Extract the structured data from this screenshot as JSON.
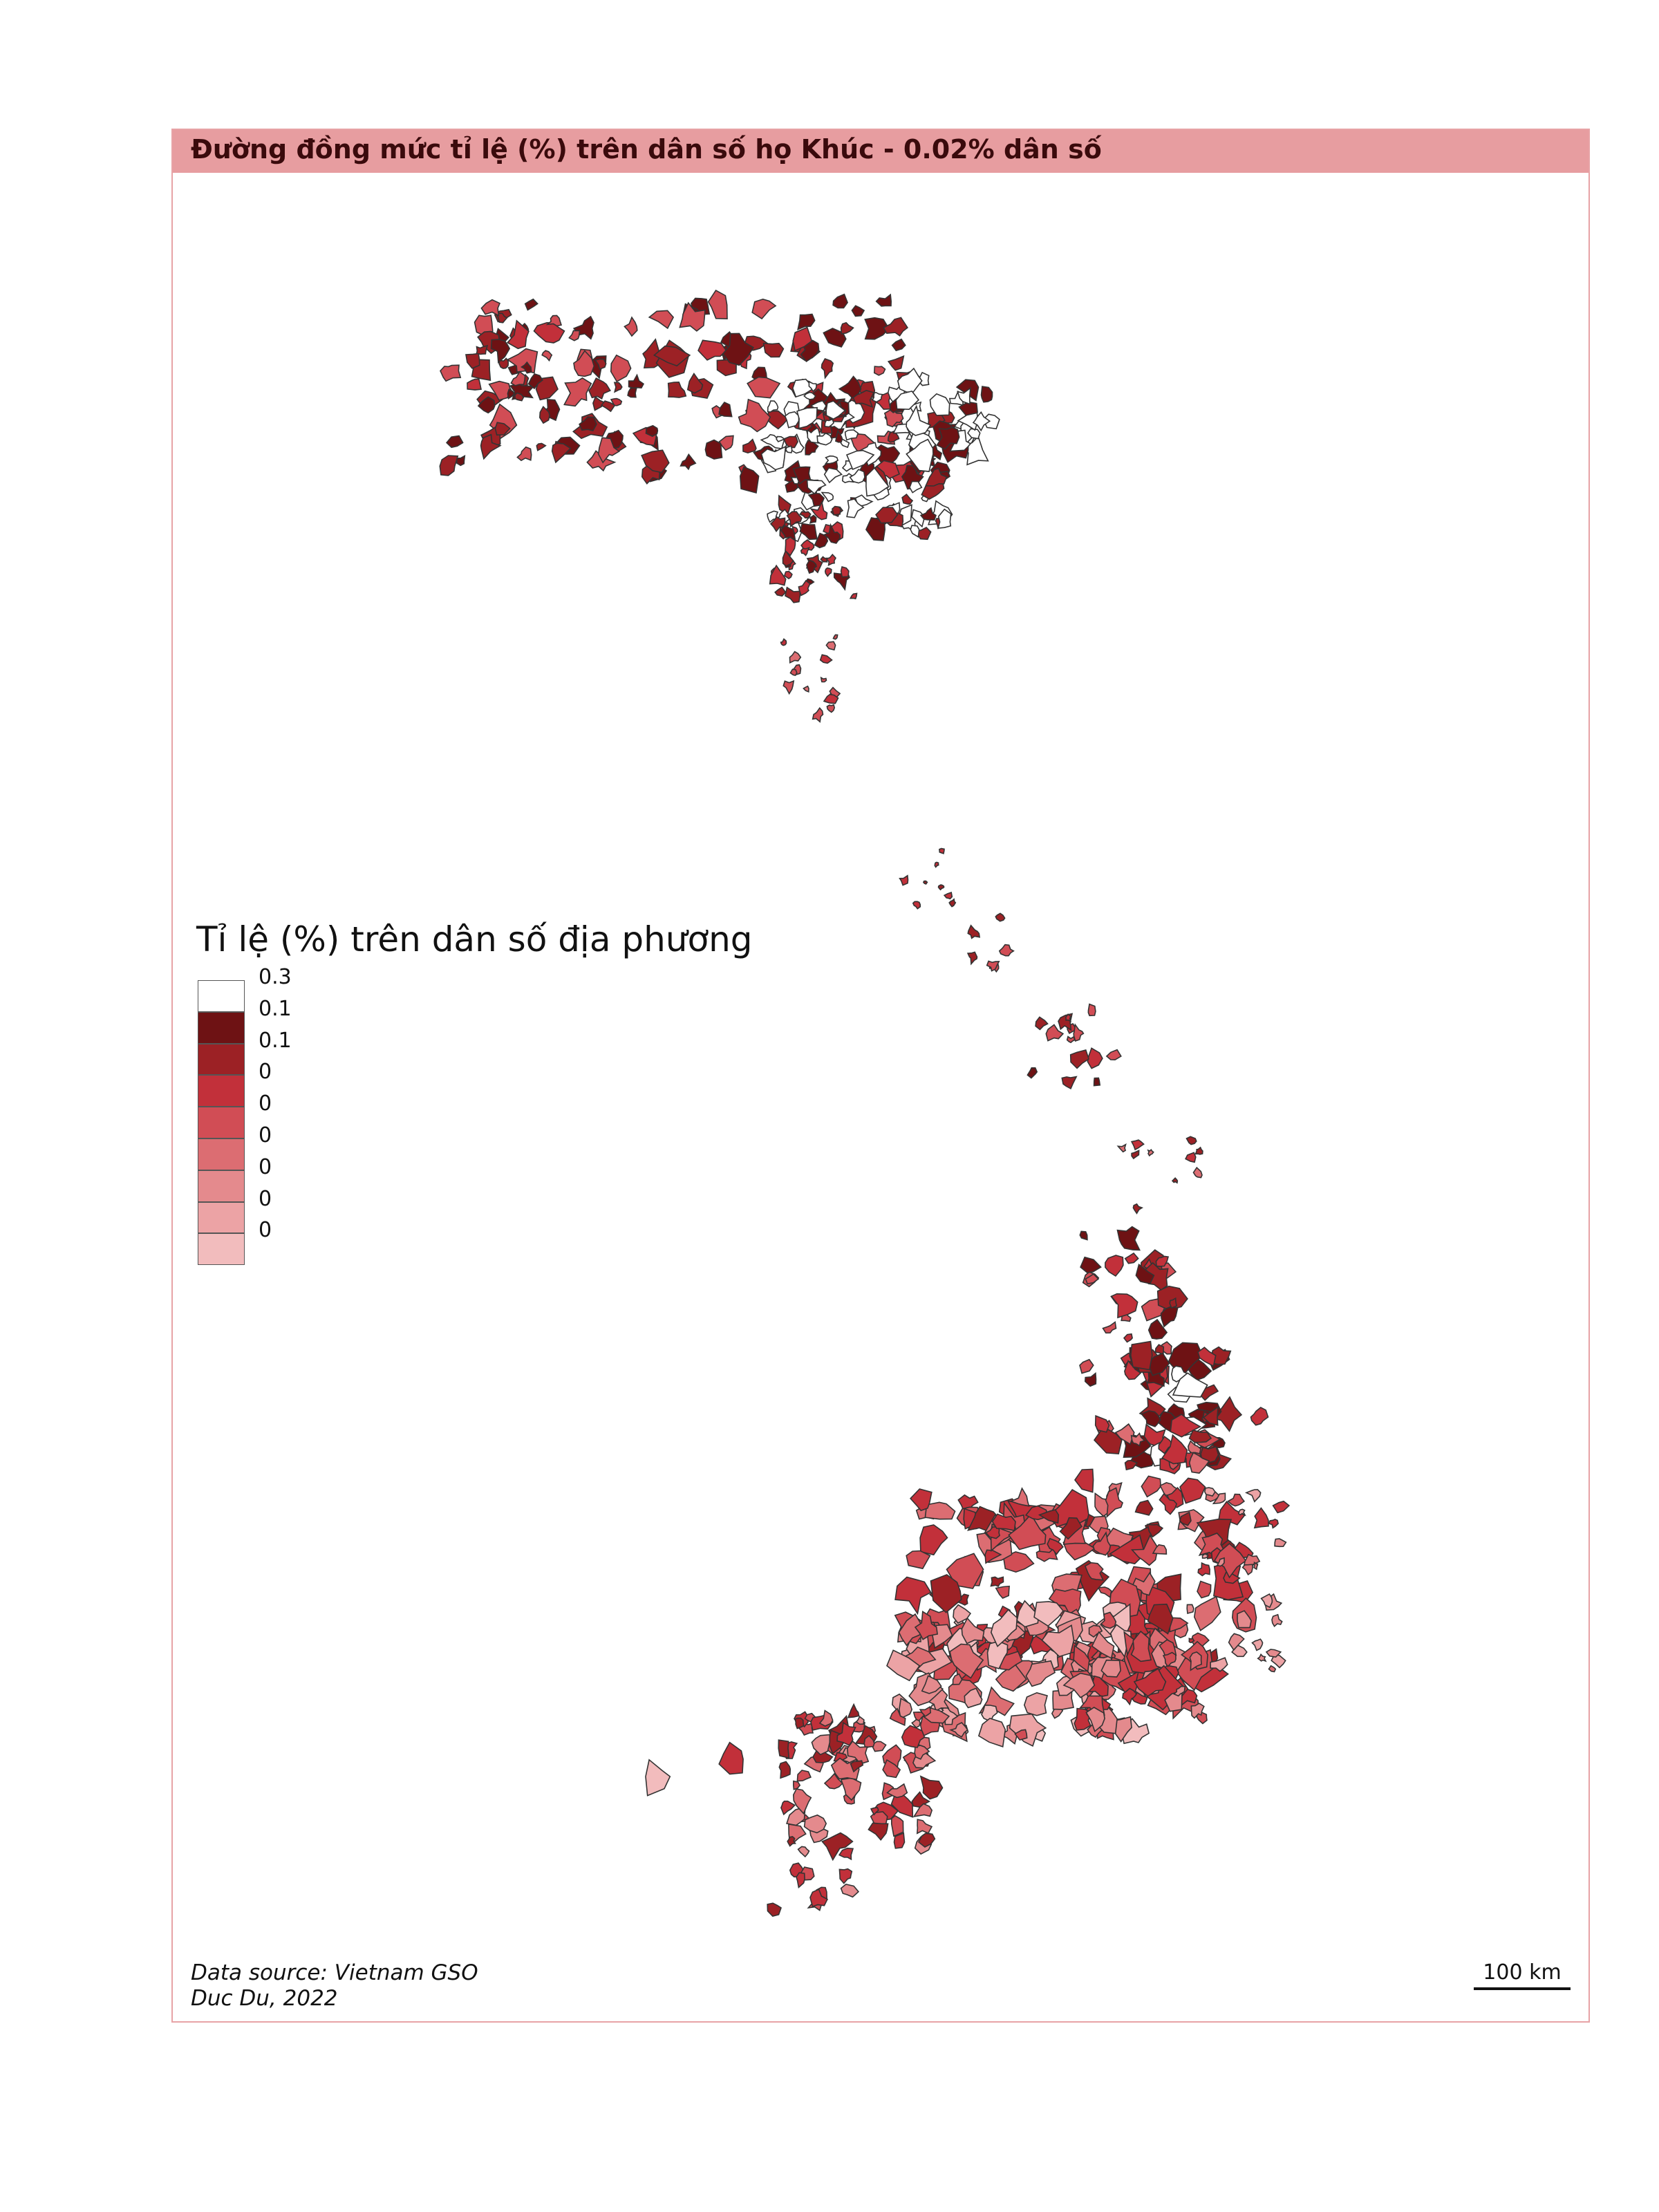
{
  "title": "Đường đồng mức tỉ lệ (%) trên dân số họ Khúc - 0.02% dân số",
  "legend": {
    "title": "Tỉ lệ (%) trên dân số địa phương",
    "items": [
      {
        "label": "0.3",
        "color": "#ffffff"
      },
      {
        "label": "0.1",
        "color": "#6e1214"
      },
      {
        "label": "0.1",
        "color": "#9c2125"
      },
      {
        "label": "0",
        "color": "#c2303a"
      },
      {
        "label": "0",
        "color": "#d14d55"
      },
      {
        "label": "0",
        "color": "#dc6d72"
      },
      {
        "label": "0",
        "color": "#e48a8d"
      },
      {
        "label": "0",
        "color": "#ec a3a5"
      },
      {
        "label": "0",
        "color": "#f2bcbd"
      }
    ]
  },
  "source": {
    "line1": "Data source: Vietnam GSO",
    "line2": "Duc Du, 2022"
  },
  "scale": {
    "label": "100 km"
  },
  "colors": {
    "frame": "#e7a3a6",
    "title_bar": "#e79da0",
    "outline": "#333333"
  }
}
